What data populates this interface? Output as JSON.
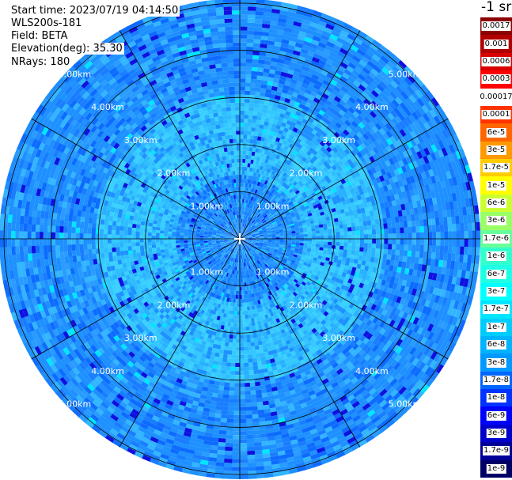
{
  "info": {
    "start_time": "Start time: 2023/07/19 04:14:50",
    "device": "WLS200s-181",
    "field": "Field: BETA",
    "elevation": "Elevation(deg): 35.30",
    "nrays": "NRays: 180"
  },
  "colorbar": {
    "title": "-1 sr",
    "levels": [
      {
        "label": "0.0017",
        "color": "#8b0000"
      },
      {
        "label": "0.001",
        "color": "#b00000"
      },
      {
        "label": "0.0006",
        "color": "#d80000"
      },
      {
        "label": "0.0003",
        "color": "#ff0000"
      },
      {
        "label": "0.00017",
        "color": "#ffffff"
      },
      {
        "label": "0.0001",
        "color": "#ff3300"
      },
      {
        "label": "6e-5",
        "color": "#ff6600"
      },
      {
        "label": "3e-5",
        "color": "#ff9900"
      },
      {
        "label": "1.7e-5",
        "color": "#ffcc00"
      },
      {
        "label": "1e-5",
        "color": "#ffff00"
      },
      {
        "label": "6e-6",
        "color": "#ccff33"
      },
      {
        "label": "3e-6",
        "color": "#99ff66"
      },
      {
        "label": "1.7e-6",
        "color": "#66ff99"
      },
      {
        "label": "1e-6",
        "color": "#33ffcc"
      },
      {
        "label": "6e-7",
        "color": "#1effe6"
      },
      {
        "label": "3e-7",
        "color": "#00ffff"
      },
      {
        "label": "1.7e-7",
        "color": "#00e6ff"
      },
      {
        "label": "1e-7",
        "color": "#00ccff"
      },
      {
        "label": "6e-8",
        "color": "#00b3ff"
      },
      {
        "label": "3e-8",
        "color": "#0099ff"
      },
      {
        "label": "1.7e-8",
        "color": "#0066ff"
      },
      {
        "label": "1e-8",
        "color": "#0033ff"
      },
      {
        "label": "6e-9",
        "color": "#0000ff"
      },
      {
        "label": "3e-9",
        "color": "#0000cc"
      },
      {
        "label": "1.7e-9",
        "color": "#000099"
      },
      {
        "label": "1e-9",
        "color": "#000066"
      }
    ]
  },
  "chart_data": {
    "type": "heatmap",
    "projection": "polar (PPI)",
    "range_rings_km": [
      1,
      2,
      3,
      4,
      5
    ],
    "ring_labels": [
      "1.00km",
      "2.00km",
      "3.00km",
      "4.00km",
      "5.00km"
    ],
    "max_range_km": 5.1,
    "radial_spoke_step_deg": 30,
    "dominant_color": "#1e90ff",
    "near_center_color": "#33c8ff"
  }
}
